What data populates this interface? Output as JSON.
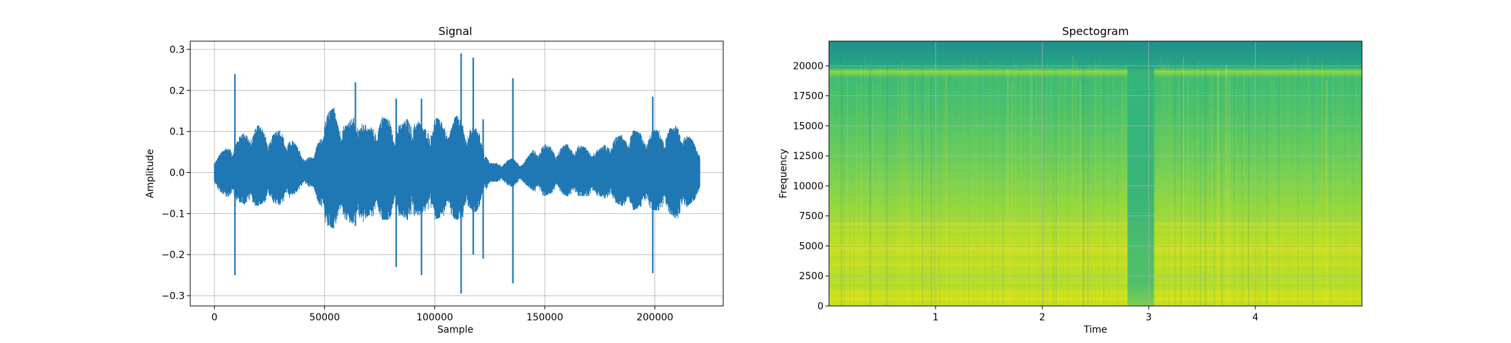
{
  "chart_data": [
    {
      "type": "line",
      "title": "Signal",
      "xlabel": "Sample",
      "ylabel": "Amplitude",
      "xlim": [
        -11000,
        231000
      ],
      "ylim": [
        -0.325,
        0.32
      ],
      "xticks": [
        0,
        50000,
        100000,
        150000,
        200000
      ],
      "xtick_labels": [
        "0",
        "50000",
        "100000",
        "150000",
        "200000"
      ],
      "yticks": [
        -0.3,
        -0.2,
        -0.1,
        0.0,
        0.1,
        0.2,
        0.3
      ],
      "ytick_labels": [
        "−0.3",
        "−0.2",
        "−0.1",
        "0.0",
        "0.1",
        "0.2",
        "0.3"
      ],
      "grid": true,
      "color": "#1f77b4",
      "sample_count": 220500,
      "envelope": {
        "x": [
          0,
          5000,
          10000,
          15000,
          20000,
          25000,
          30000,
          35000,
          40000,
          45000,
          50000,
          55000,
          60000,
          65000,
          70000,
          75000,
          80000,
          85000,
          90000,
          95000,
          100000,
          105000,
          110000,
          115000,
          120000,
          125000,
          130000,
          135000,
          140000,
          145000,
          150000,
          155000,
          160000,
          165000,
          170000,
          175000,
          180000,
          185000,
          190000,
          195000,
          200000,
          205000,
          210000,
          215000,
          220000
        ],
        "max": [
          0.03,
          0.05,
          0.07,
          0.09,
          0.1,
          0.08,
          0.09,
          0.07,
          0.04,
          0.03,
          0.12,
          0.14,
          0.1,
          0.13,
          0.09,
          0.12,
          0.11,
          0.1,
          0.13,
          0.09,
          0.12,
          0.1,
          0.12,
          0.1,
          0.09,
          0.02,
          0.02,
          0.03,
          0.02,
          0.05,
          0.06,
          0.05,
          0.06,
          0.06,
          0.05,
          0.05,
          0.07,
          0.08,
          0.09,
          0.08,
          0.09,
          0.09,
          0.1,
          0.08,
          0.05
        ],
        "min": [
          -0.03,
          -0.05,
          -0.06,
          -0.07,
          -0.07,
          -0.06,
          -0.07,
          -0.05,
          -0.03,
          -0.03,
          -0.11,
          -0.12,
          -0.1,
          -0.12,
          -0.09,
          -0.1,
          -0.1,
          -0.09,
          -0.11,
          -0.08,
          -0.1,
          -0.09,
          -0.1,
          -0.09,
          -0.08,
          -0.02,
          -0.02,
          -0.03,
          -0.02,
          -0.04,
          -0.05,
          -0.04,
          -0.05,
          -0.05,
          -0.05,
          -0.05,
          -0.06,
          -0.07,
          -0.08,
          -0.07,
          -0.08,
          -0.08,
          -0.1,
          -0.07,
          -0.05
        ]
      },
      "spikes": [
        {
          "x": 9300,
          "max": 0.24,
          "min": -0.25
        },
        {
          "x": 64000,
          "max": 0.22,
          "min": -0.13
        },
        {
          "x": 82500,
          "max": 0.18,
          "min": -0.23
        },
        {
          "x": 94000,
          "max": 0.18,
          "min": -0.25
        },
        {
          "x": 112000,
          "max": 0.29,
          "min": -0.295
        },
        {
          "x": 117500,
          "max": 0.28,
          "min": -0.2
        },
        {
          "x": 122000,
          "max": 0.13,
          "min": -0.21
        },
        {
          "x": 135500,
          "max": 0.23,
          "min": -0.27
        },
        {
          "x": 199000,
          "max": 0.185,
          "min": -0.245
        }
      ]
    },
    {
      "type": "heatmap",
      "title": "Spectogram",
      "xlabel": "Time",
      "ylabel": "Frequency",
      "xlim": [
        0,
        5.0
      ],
      "ylim": [
        0,
        22050
      ],
      "xticks": [
        1,
        2,
        3,
        4
      ],
      "xtick_labels": [
        "1",
        "2",
        "3",
        "4"
      ],
      "yticks": [
        0,
        2500,
        5000,
        7500,
        10000,
        12500,
        15000,
        17500,
        20000
      ],
      "ytick_labels": [
        "0",
        "2500",
        "5000",
        "7500",
        "10000",
        "12500",
        "15000",
        "17500",
        "20000"
      ],
      "grid": true,
      "colormap": "viridis",
      "quiet_interval": [
        2.8,
        3.05
      ]
    }
  ]
}
